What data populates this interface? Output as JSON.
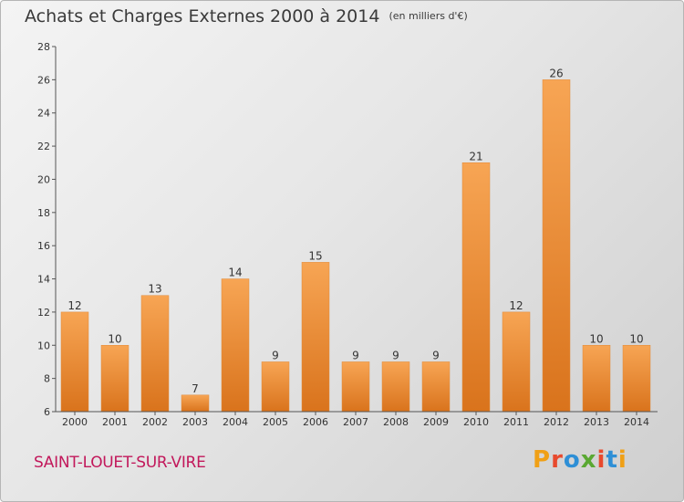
{
  "chart_data": {
    "type": "bar",
    "title": "Achats et Charges Externes 2000 à 2014",
    "subtitle": "(en milliers d'€)",
    "categories": [
      "2000",
      "2001",
      "2002",
      "2003",
      "2004",
      "2005",
      "2006",
      "2007",
      "2008",
      "2009",
      "2010",
      "2011",
      "2012",
      "2013",
      "2014"
    ],
    "values": [
      12,
      10,
      13,
      7,
      14,
      9,
      15,
      9,
      9,
      9,
      21,
      12,
      26,
      10,
      10
    ],
    "ylim": [
      6,
      28
    ],
    "yticks": [
      6,
      8,
      10,
      12,
      14,
      16,
      18,
      20,
      22,
      24,
      26,
      28
    ],
    "grid": false,
    "bar_color": "#f29a3f",
    "bar_color_dark": "#d9731c"
  },
  "footer": {
    "commune": "SAINT-LOUET-SUR-VIRE",
    "logo": "Proxiti",
    "logo_colors": [
      "#f0a016",
      "#e84a2e",
      "#2e8fd6",
      "#5aa832",
      "#e84a2e",
      "#2e8fd6",
      "#f0a016"
    ]
  }
}
